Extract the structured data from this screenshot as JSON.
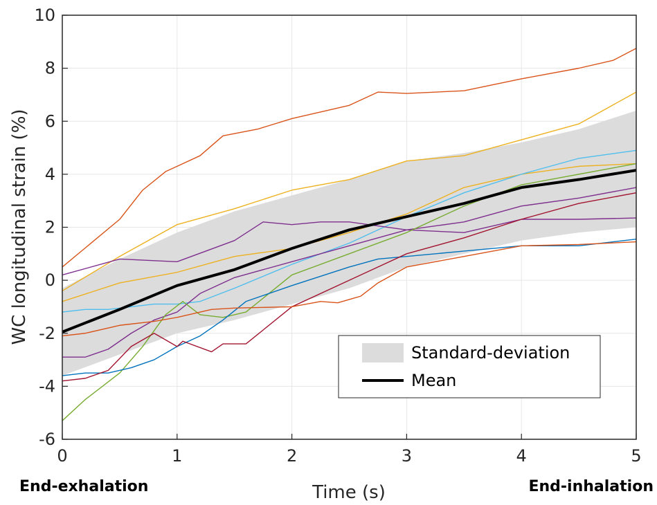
{
  "chart_data": {
    "type": "line",
    "xlabel": "Time (s)",
    "ylabel": "WC longitudinal strain (%)",
    "xlim": [
      0,
      5
    ],
    "ylim": [
      -6,
      10
    ],
    "xticks": [
      0,
      1,
      2,
      3,
      4,
      5
    ],
    "yticks": [
      -6,
      -4,
      -2,
      0,
      2,
      4,
      6,
      8,
      10
    ],
    "grid": true,
    "legend_position": "lower-right",
    "annotations": {
      "left": "End-exhalation",
      "right": "End-inhalation"
    },
    "legend": [
      {
        "label": "Standard-deviation",
        "kind": "band",
        "color": "#dcdcdc"
      },
      {
        "label": "Mean",
        "kind": "line",
        "color": "#000000"
      }
    ],
    "band": {
      "name": "Standard-deviation",
      "x": [
        0,
        0.5,
        1,
        1.5,
        2,
        2.5,
        3,
        3.5,
        4,
        4.5,
        5
      ],
      "upper": [
        -0.3,
        0.8,
        1.8,
        2.6,
        3.2,
        3.8,
        4.5,
        4.8,
        5.2,
        5.7,
        6.4
      ],
      "lower": [
        -3.6,
        -2.8,
        -2.0,
        -1.5,
        -0.9,
        -0.3,
        0.5,
        1.0,
        1.5,
        1.8,
        2.0
      ]
    },
    "mean": {
      "name": "Mean",
      "x": [
        0,
        0.5,
        1,
        1.5,
        2,
        2.5,
        3,
        3.5,
        4,
        4.5,
        5
      ],
      "y": [
        -1.95,
        -1.1,
        -0.2,
        0.4,
        1.2,
        1.9,
        2.4,
        2.9,
        3.5,
        3.8,
        4.15
      ]
    },
    "series": [
      {
        "color": "#d95319",
        "x": [
          0,
          0.5,
          0.7,
          0.9,
          1.2,
          1.4,
          1.7,
          2,
          2.5,
          2.75,
          3,
          3.5,
          4,
          4.5,
          4.8,
          5
        ],
        "y": [
          0.5,
          2.3,
          3.4,
          4.1,
          4.7,
          5.45,
          5.7,
          6.1,
          6.6,
          7.1,
          7.05,
          7.15,
          7.6,
          8.0,
          8.3,
          8.75
        ]
      },
      {
        "color": "#edb120",
        "x": [
          0,
          0.5,
          1,
          1.5,
          2,
          2.5,
          3,
          3.5,
          4,
          4.5,
          5
        ],
        "y": [
          -0.4,
          0.9,
          2.1,
          2.7,
          3.4,
          3.8,
          4.5,
          4.7,
          5.3,
          5.9,
          7.1
        ]
      },
      {
        "color": "#edb120",
        "x": [
          0,
          0.5,
          1,
          1.5,
          2,
          2.5,
          3,
          3.5,
          4,
          4.5,
          5
        ],
        "y": [
          -0.8,
          -0.1,
          0.3,
          0.9,
          1.2,
          1.8,
          2.5,
          3.5,
          4.0,
          4.3,
          4.4
        ]
      },
      {
        "color": "#4dbeee",
        "x": [
          0,
          0.2,
          0.4,
          0.6,
          0.8,
          1,
          1.2,
          1.5,
          2,
          2.5,
          3,
          3.5,
          4,
          4.5,
          5
        ],
        "y": [
          -1.2,
          -1.1,
          -1.1,
          -1.0,
          -0.9,
          -0.9,
          -0.8,
          -0.3,
          0.6,
          1.4,
          2.4,
          3.3,
          4.0,
          4.6,
          4.9
        ]
      },
      {
        "color": "#7e2f8e",
        "x": [
          0,
          0.5,
          1,
          1.5,
          1.75,
          2,
          2.25,
          2.5,
          3,
          3.5,
          4,
          4.5,
          5
        ],
        "y": [
          0.2,
          0.8,
          0.7,
          1.5,
          2.2,
          2.1,
          2.2,
          2.2,
          1.9,
          1.8,
          2.3,
          2.3,
          2.35
        ]
      },
      {
        "color": "#7e2f8e",
        "x": [
          0,
          0.2,
          0.4,
          0.6,
          0.8,
          1,
          1.2,
          1.5,
          2,
          2.5,
          3,
          3.5,
          4,
          4.5,
          5
        ],
        "y": [
          -2.9,
          -2.9,
          -2.6,
          -2.0,
          -1.5,
          -1.2,
          -0.5,
          0.1,
          0.7,
          1.3,
          1.9,
          2.2,
          2.8,
          3.1,
          3.5
        ]
      },
      {
        "color": "#77ac30",
        "x": [
          0,
          0.2,
          0.5,
          0.7,
          0.9,
          1.05,
          1.2,
          1.4,
          1.6,
          2,
          2.5,
          3,
          3.5,
          4,
          4.5,
          5
        ],
        "y": [
          -5.3,
          -4.5,
          -3.5,
          -2.5,
          -1.3,
          -0.8,
          -1.3,
          -1.4,
          -1.2,
          0.2,
          1.0,
          1.8,
          2.8,
          3.6,
          4.0,
          4.4
        ]
      },
      {
        "color": "#0072bd",
        "x": [
          0,
          0.2,
          0.4,
          0.6,
          0.8,
          1,
          1.2,
          1.4,
          1.6,
          2,
          2.5,
          2.75,
          3,
          3.5,
          4,
          4.5,
          5
        ],
        "y": [
          -3.6,
          -3.5,
          -3.5,
          -3.3,
          -3.0,
          -2.5,
          -2.1,
          -1.5,
          -0.8,
          -0.2,
          0.5,
          0.8,
          0.9,
          1.1,
          1.3,
          1.3,
          1.55
        ]
      },
      {
        "color": "#a2142f",
        "x": [
          0,
          0.2,
          0.4,
          0.6,
          0.8,
          1,
          1.05,
          1.3,
          1.4,
          1.6,
          2,
          2.5,
          3,
          3.5,
          4,
          4.5,
          5
        ],
        "y": [
          -3.8,
          -3.7,
          -3.4,
          -2.5,
          -2.0,
          -2.5,
          -2.3,
          -2.7,
          -2.4,
          -2.4,
          -1.0,
          0.0,
          1.0,
          1.6,
          2.3,
          2.9,
          3.3
        ]
      },
      {
        "color": "#d95319",
        "x": [
          0,
          0.2,
          0.5,
          0.8,
          1,
          1.3,
          1.5,
          2,
          2.25,
          2.4,
          2.6,
          2.75,
          3,
          3.5,
          4,
          4.5,
          5
        ],
        "y": [
          -2.1,
          -2.0,
          -1.7,
          -1.55,
          -1.4,
          -1.1,
          -1.05,
          -1.0,
          -0.8,
          -0.85,
          -0.6,
          -0.1,
          0.5,
          0.9,
          1.3,
          1.35,
          1.45
        ]
      }
    ]
  }
}
